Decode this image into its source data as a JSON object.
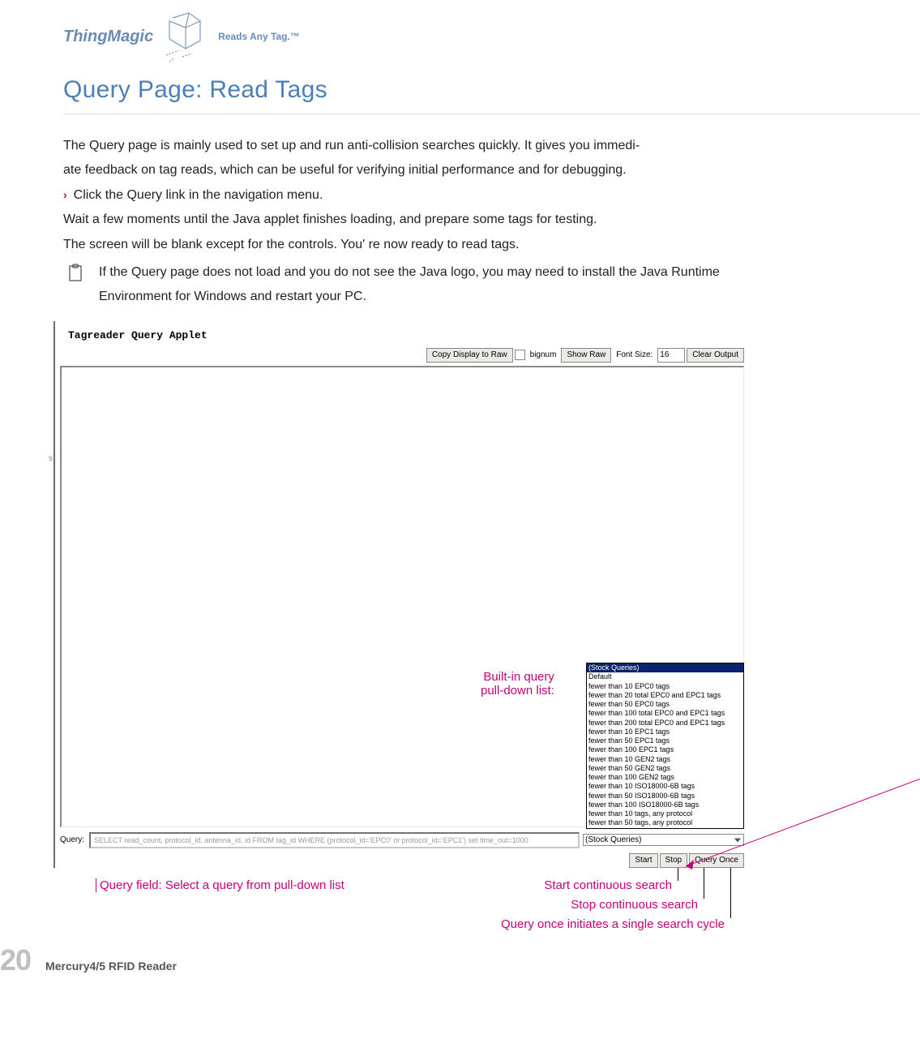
{
  "brand": {
    "name": "ThingMagic",
    "tagline": "Reads Any Tag.™"
  },
  "title": "Query Page: Read Tags",
  "copy": {
    "p1": "The Query page is mainly used to set up and run anti-collision searches quickly. It gives you immedi-",
    "p2": "ate feedback on tag reads, which can be useful for verifying initial performance and for debugging.",
    "bullet": "Click the Query link in the navigation menu.",
    "p3": "Wait a few moments until the Java applet finishes loading, and prepare some tags for testing.",
    "p4": "The screen will be blank except for the controls. You' re now ready to read tags.",
    "note": "If the Query page does not load and you do not see the Java logo, you may need to install the Java Runtime Environment for Windows and restart your PC."
  },
  "applet": {
    "title": "Tagreader Query Applet",
    "toolbar": {
      "copy_display": "Copy Display to Raw",
      "bignum": "bignum",
      "show_raw": "Show Raw",
      "font_size_label": "Font Size:",
      "font_size_value": "16",
      "clear_output": "Clear Output"
    },
    "query_label": "Query:",
    "query_value": "SELECT read_count, protocol_id, antenna_id, id FROM tag_id WHERE (protocol_id='EPC0' or protocol_id='EPC1') set time_out=1000",
    "stock_select_label": "(Stock Queries)",
    "dropdown": [
      "(Stock Queries)",
      "Default",
      "fewer than 10 EPC0 tags",
      "fewer than 20 total EPC0 and EPC1 tags",
      "fewer than 50 EPC0 tags",
      "fewer than 100 total EPC0 and EPC1 tags",
      "fewer than 200 total EPC0 and EPC1 tags",
      "fewer than 10 EPC1 tags",
      "fewer than 50 EPC1 tags",
      "fewer than 100 EPC1 tags",
      "fewer than 10 GEN2 tags",
      "fewer than 50 GEN2 tags",
      "fewer than 100 GEN2 tags",
      "fewer than 10 ISO18000-6B tags",
      "fewer than 50 ISO18000-6B tags",
      "fewer than 100 ISO18000-6B tags",
      "fewer than 10 tags, any protocol",
      "fewer than 50 tags, any protocol"
    ],
    "buttons": {
      "start": "Start",
      "stop": "Stop",
      "query_once": "Query Once"
    }
  },
  "annotations": {
    "builtin_line1": "Built-in query",
    "builtin_line2": "pull-down list:",
    "query_field": "Query field: Select a query from pull-down list",
    "start": "Start continuous search",
    "stop": "Stop continuous search",
    "once": "Query once initiates a single search cycle"
  },
  "footer": {
    "page": "20",
    "doc": "Mercury4/5 RFID Reader"
  },
  "sidebar_sliver": "s",
  "colors": {
    "title": "#4a7fb8",
    "brand": "#6a8bb5",
    "annotation": "#c40078",
    "button_bg": "#eceae6",
    "pagenum": "#bfbfbf"
  }
}
